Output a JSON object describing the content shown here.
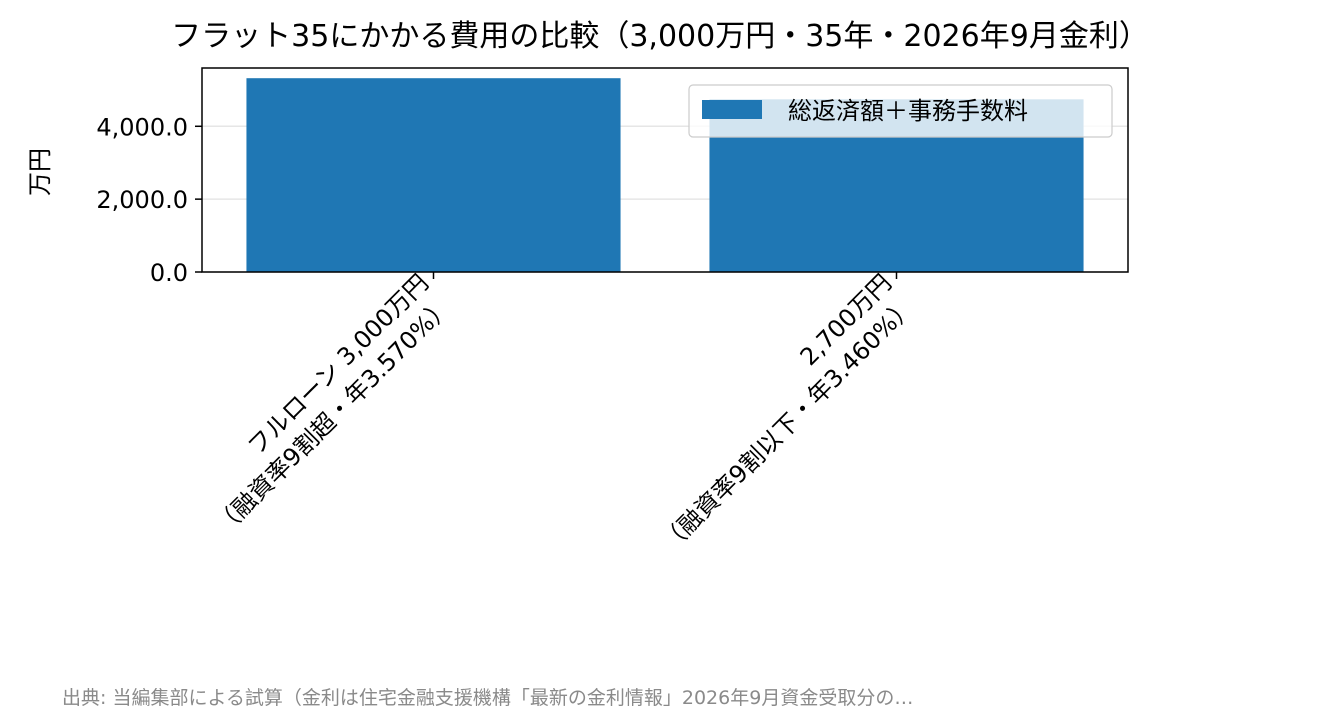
{
  "chart_data": {
    "type": "bar",
    "title": "フラット35にかかる費用の比較（3,000万円・35年・2026年9月金利）",
    "ylabel": "万円",
    "xlabel": "",
    "categories": [
      [
        "フルローン 3,000万円",
        "（融資率9割超・年3.570%）"
      ],
      [
        "2,700万円",
        "（融資率9割以下・年3.460%）"
      ]
    ],
    "series": [
      {
        "name": "総返済額＋事務手数料",
        "values": [
          5320,
          4740
        ],
        "color": "#1f77b4"
      }
    ],
    "ylim": [
      0,
      5600
    ],
    "yticks": [
      "0.0",
      "2,000.0",
      "4,000.0"
    ],
    "ytick_values": [
      0,
      2000,
      4000
    ],
    "grid": "y",
    "legend_position": "upper-right"
  },
  "source_note": "出典: 当編集部による試算（金利は住宅金融支援機構「最新の金利情報」2026年9月資金受取分の…"
}
